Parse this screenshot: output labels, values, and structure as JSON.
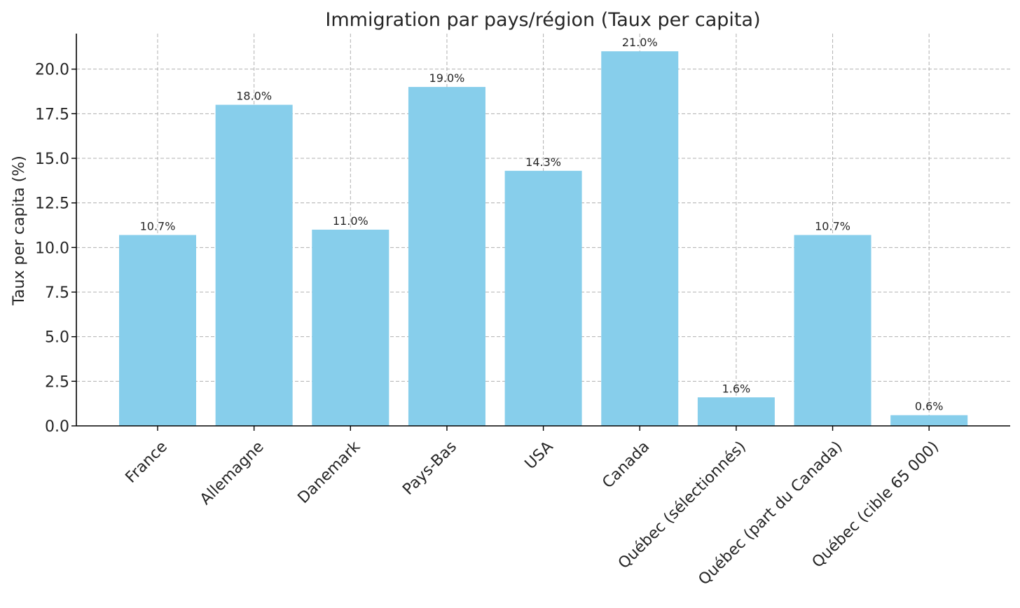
{
  "chart_data": {
    "type": "bar",
    "title": "Immigration par pays/région (Taux per capita)",
    "xlabel": "",
    "ylabel": "Taux per capita (%)",
    "categories": [
      "France",
      "Allemagne",
      "Danemark",
      "Pays-Bas",
      "USA",
      "Canada",
      "Québec (sélectionnés)",
      "Québec (part du Canada)",
      "Québec (cible 65 000)"
    ],
    "values": [
      10.7,
      18.0,
      11.0,
      19.0,
      14.3,
      21.0,
      1.6,
      10.7,
      0.6
    ],
    "value_labels": [
      "10.7%",
      "18.0%",
      "11.0%",
      "19.0%",
      "14.3%",
      "21.0%",
      "1.6%",
      "10.7%",
      "0.6%"
    ],
    "ylim": [
      0,
      22
    ],
    "yticks": [
      0,
      2.5,
      5,
      7.5,
      10,
      12.5,
      15,
      17.5,
      20
    ],
    "ytick_labels": [
      "0.0",
      "2.5",
      "5.0",
      "7.5",
      "10.0",
      "12.5",
      "15.0",
      "17.5",
      "20.0"
    ],
    "bar_color": "#87ceeb",
    "grid": true,
    "legend": "none"
  }
}
